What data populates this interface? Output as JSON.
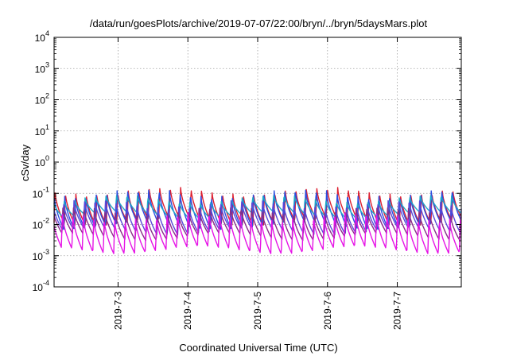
{
  "chart_data": {
    "type": "line",
    "title": "/data/run/goesPlots/archive/2019-07-07/22:00/bryn/../bryn/5daysMars.plot",
    "xlabel": "Coordinated Universal Time (UTC)",
    "ylabel": "cSv/day",
    "yscale": "log",
    "ylim": [
      0.0001,
      10000
    ],
    "yticks": [
      {
        "value": 0.0001,
        "base": "10",
        "exp": "-4"
      },
      {
        "value": 0.001,
        "base": "10",
        "exp": "-3"
      },
      {
        "value": 0.01,
        "base": "10",
        "exp": "-2"
      },
      {
        "value": 0.1,
        "base": "10",
        "exp": "-1"
      },
      {
        "value": 1,
        "base": "10",
        "exp": "0"
      },
      {
        "value": 10,
        "base": "10",
        "exp": "1"
      },
      {
        "value": 100,
        "base": "10",
        "exp": "2"
      },
      {
        "value": 1000,
        "base": "10",
        "exp": "3"
      },
      {
        "value": 10000,
        "base": "10",
        "exp": "4"
      }
    ],
    "xlim": [
      "2019-07-02 02:00",
      "2019-07-07 22:00"
    ],
    "xticks": [
      {
        "value": "2019-07-03 00:00",
        "label": "2019-7-3"
      },
      {
        "value": "2019-07-04 00:00",
        "label": "2019-7-4"
      },
      {
        "value": "2019-07-05 00:00",
        "label": "2019-7-5"
      },
      {
        "value": "2019-07-06 00:00",
        "label": "2019-7-6"
      },
      {
        "value": "2019-07-07 00:00",
        "label": "2019-7-7"
      }
    ],
    "grid": true,
    "period_hours": 3.6,
    "series": [
      {
        "color": "#dd1e2f",
        "peak": 0.13,
        "trough": 0.012
      },
      {
        "color": "#2b4de0",
        "peak": 0.11,
        "trough": 0.009
      },
      {
        "color": "#1fa8c8",
        "peak": 0.07,
        "trough": 0.02
      },
      {
        "color": "#5a48d8",
        "peak": 0.05,
        "trough": 0.006
      },
      {
        "color": "#8a2a8a",
        "peak": 0.03,
        "trough": 0.004
      },
      {
        "color": "#e614e6",
        "peak": 0.02,
        "trough": 0.0015
      }
    ]
  }
}
